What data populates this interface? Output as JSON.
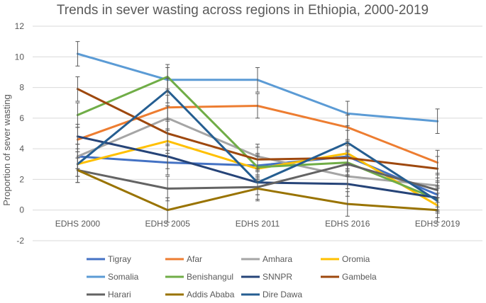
{
  "chart_data": {
    "type": "line",
    "title": "Trends in sever wasting across regions in Ethiopia, 2000-2019",
    "xlabel": "",
    "ylabel": "Proportion of sever wasting",
    "categories": [
      "EDHS 2000",
      "EDHS 2005",
      "EDHS 2011",
      "EDHS 2016",
      "EDHS 2019"
    ],
    "ylim": [
      -2,
      12
    ],
    "yticks": [
      -2,
      0,
      2,
      4,
      6,
      8,
      10,
      12
    ],
    "grid": true,
    "error_bars": true,
    "error_margin": 0.8,
    "legend_position": "bottom",
    "series": [
      {
        "name": "Tigray",
        "color": "#4472C4",
        "values": [
          3.5,
          3.1,
          2.9,
          3.5,
          1.0
        ]
      },
      {
        "name": "Afar",
        "color": "#ED7D31",
        "values": [
          4.6,
          6.7,
          6.8,
          5.4,
          3.1
        ]
      },
      {
        "name": "Amhara",
        "color": "#A5A5A5",
        "values": [
          3.5,
          6.0,
          3.5,
          2.2,
          1.6
        ]
      },
      {
        "name": "Oromia",
        "color": "#FFC000",
        "values": [
          3.0,
          4.5,
          2.7,
          3.7,
          0.3
        ]
      },
      {
        "name": "Somalia",
        "color": "#5B9BD5",
        "values": [
          10.2,
          8.5,
          8.5,
          6.3,
          5.8
        ]
      },
      {
        "name": "Benishangul",
        "color": "#70AD47",
        "values": [
          6.2,
          8.7,
          2.8,
          3.1,
          0.7
        ]
      },
      {
        "name": "SNNPR",
        "color": "#264478",
        "values": [
          4.8,
          3.5,
          1.8,
          1.7,
          0.8
        ]
      },
      {
        "name": "Gambela",
        "color": "#9E480E",
        "values": [
          7.9,
          5.0,
          3.3,
          3.4,
          2.7
        ]
      },
      {
        "name": "Harari",
        "color": "#636363",
        "values": [
          2.6,
          1.4,
          1.5,
          3.0,
          1.3
        ]
      },
      {
        "name": "Addis Ababa",
        "color": "#997300",
        "values": [
          2.6,
          0.0,
          1.4,
          0.4,
          0.0
        ]
      },
      {
        "name": "Dire Dawa",
        "color": "#255E91",
        "values": [
          3.0,
          7.8,
          1.8,
          4.4,
          0.6
        ]
      }
    ]
  }
}
